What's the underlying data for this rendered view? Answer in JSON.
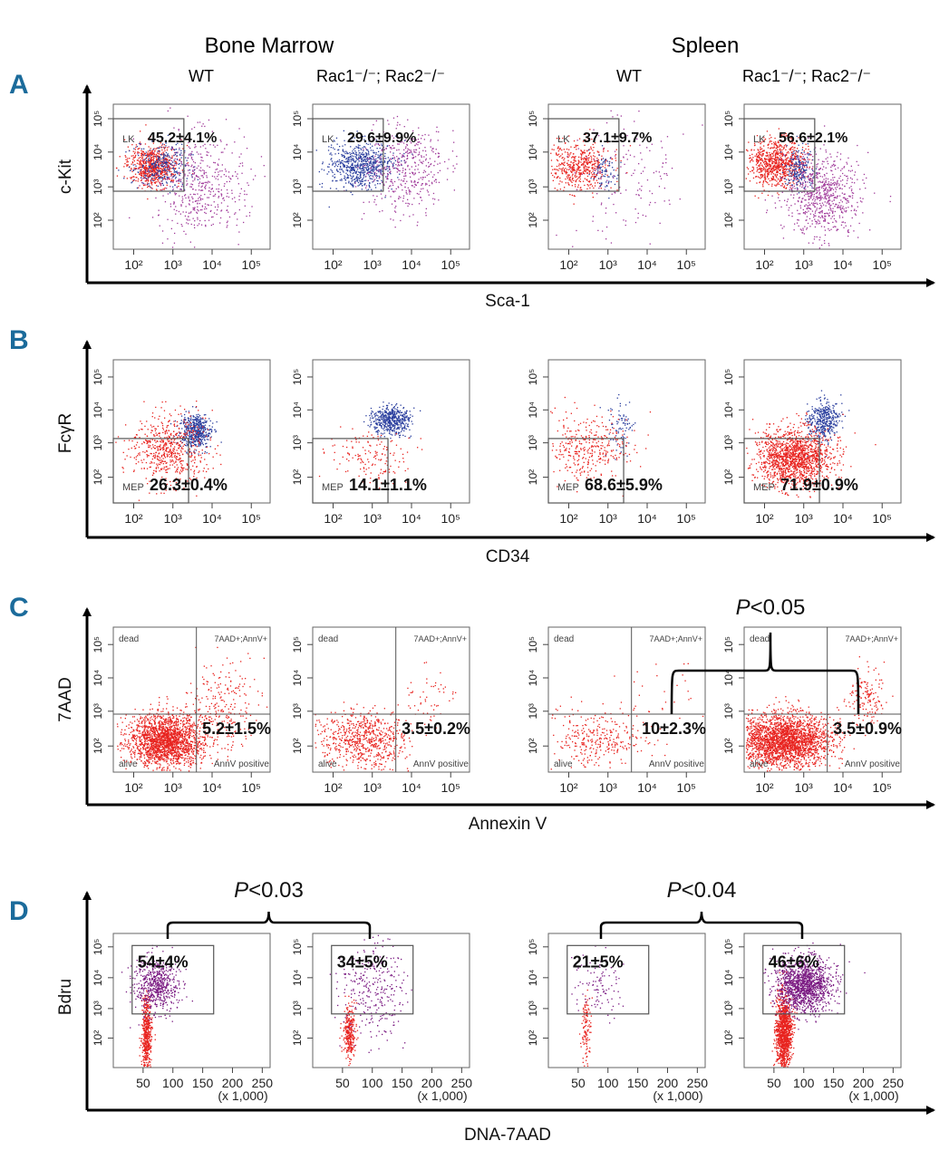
{
  "figure": {
    "column_headers": [
      "Bone Marrow",
      "Spleen"
    ],
    "genotype_headers": [
      "WT",
      "Rac1⁻/⁻; Rac2⁻/⁻",
      "WT",
      "Rac1⁻/⁻; Rac2⁻/⁻"
    ],
    "colors": {
      "panel_label": "#1b6b9b",
      "red_population": "#e8231f",
      "blue_population": "#2b3f9e",
      "magenta_population": "#a03a9a",
      "purple_population": "#7a1a82"
    }
  },
  "chart_data": [
    {
      "type": "scatter",
      "panel": "A",
      "ylabel": "c-Kit",
      "xlabel": "Sca-1",
      "x_scale": "log",
      "y_scale": "log",
      "x_ticks": [
        "10²",
        "10³",
        "10⁴",
        "10⁵"
      ],
      "y_ticks": [
        "10²",
        "10³",
        "10⁴",
        "10⁵"
      ],
      "gate_label": "LK",
      "plots": [
        {
          "tissue": "Bone Marrow",
          "genotype": "WT",
          "value": "45.2±4.1%"
        },
        {
          "tissue": "Bone Marrow",
          "genotype": "Rac1-/-; Rac2-/-",
          "value": "29.6±9.9%"
        },
        {
          "tissue": "Spleen",
          "genotype": "WT",
          "value": "37.1±9.7%"
        },
        {
          "tissue": "Spleen",
          "genotype": "Rac1-/-; Rac2-/-",
          "value": "56.6±2.1%"
        }
      ]
    },
    {
      "type": "scatter",
      "panel": "B",
      "ylabel": "FcγR",
      "xlabel": "CD34",
      "x_scale": "log",
      "y_scale": "log",
      "x_ticks": [
        "10²",
        "10³",
        "10⁴",
        "10⁵"
      ],
      "y_ticks": [
        "10²",
        "10³",
        "10⁴",
        "10⁵"
      ],
      "gate_label": "MEP",
      "plots": [
        {
          "tissue": "Bone Marrow",
          "genotype": "WT",
          "value": "26.3±0.4%"
        },
        {
          "tissue": "Bone Marrow",
          "genotype": "Rac1-/-; Rac2-/-",
          "value": "14.1±1.1%"
        },
        {
          "tissue": "Spleen",
          "genotype": "WT",
          "value": "68.6±5.9%"
        },
        {
          "tissue": "Spleen",
          "genotype": "Rac1-/-; Rac2-/-",
          "value": "71.9±0.9%"
        }
      ]
    },
    {
      "type": "scatter",
      "panel": "C",
      "ylabel": "7AAD",
      "xlabel": "Annexin V",
      "x_scale": "log",
      "y_scale": "log",
      "x_ticks": [
        "10²",
        "10³",
        "10⁴",
        "10⁵"
      ],
      "y_ticks": [
        "10²",
        "10³",
        "10⁴",
        "10⁵"
      ],
      "quadrant_labels": {
        "top_left": "dead",
        "top_right": "7AAD+;AnnV+",
        "bottom_left": "alive",
        "bottom_right": "AnnV positive"
      },
      "plots": [
        {
          "tissue": "Bone Marrow",
          "genotype": "WT",
          "value": "5.2±1.5%"
        },
        {
          "tissue": "Bone Marrow",
          "genotype": "Rac1-/-; Rac2-/-",
          "value": "3.5±0.2%"
        },
        {
          "tissue": "Spleen",
          "genotype": "WT",
          "value": "10±2.3%"
        },
        {
          "tissue": "Spleen",
          "genotype": "Rac1-/-; Rac2-/-",
          "value": "3.5±0.9%"
        }
      ],
      "annotations": [
        {
          "text": "P<0.05",
          "between": [
            "Spleen WT",
            "Spleen Rac1-/-; Rac2-/-"
          ]
        }
      ]
    },
    {
      "type": "scatter",
      "panel": "D",
      "ylabel": "Bdru",
      "xlabel": "DNA-7AAD",
      "x_scale": "linear",
      "y_scale": "log",
      "x_ticks": [
        "50",
        "100",
        "150",
        "200",
        "250"
      ],
      "x_unit": "(x 1,000)",
      "y_ticks": [
        "10²",
        "10³",
        "10⁴",
        "10⁵"
      ],
      "plots": [
        {
          "tissue": "Bone Marrow",
          "genotype": "WT",
          "value": "54±4%"
        },
        {
          "tissue": "Bone Marrow",
          "genotype": "Rac1-/-; Rac2-/-",
          "value": "34±5%"
        },
        {
          "tissue": "Spleen",
          "genotype": "WT",
          "value": "21±5%"
        },
        {
          "tissue": "Spleen",
          "genotype": "Rac1-/-; Rac2-/-",
          "value": "46±6%"
        }
      ],
      "annotations": [
        {
          "text": "P<0.03",
          "between": [
            "Bone Marrow WT",
            "Bone Marrow Rac1-/-; Rac2-/-"
          ]
        },
        {
          "text": "P<0.04",
          "between": [
            "Spleen WT",
            "Spleen Rac1-/-; Rac2-/-"
          ]
        }
      ]
    }
  ]
}
